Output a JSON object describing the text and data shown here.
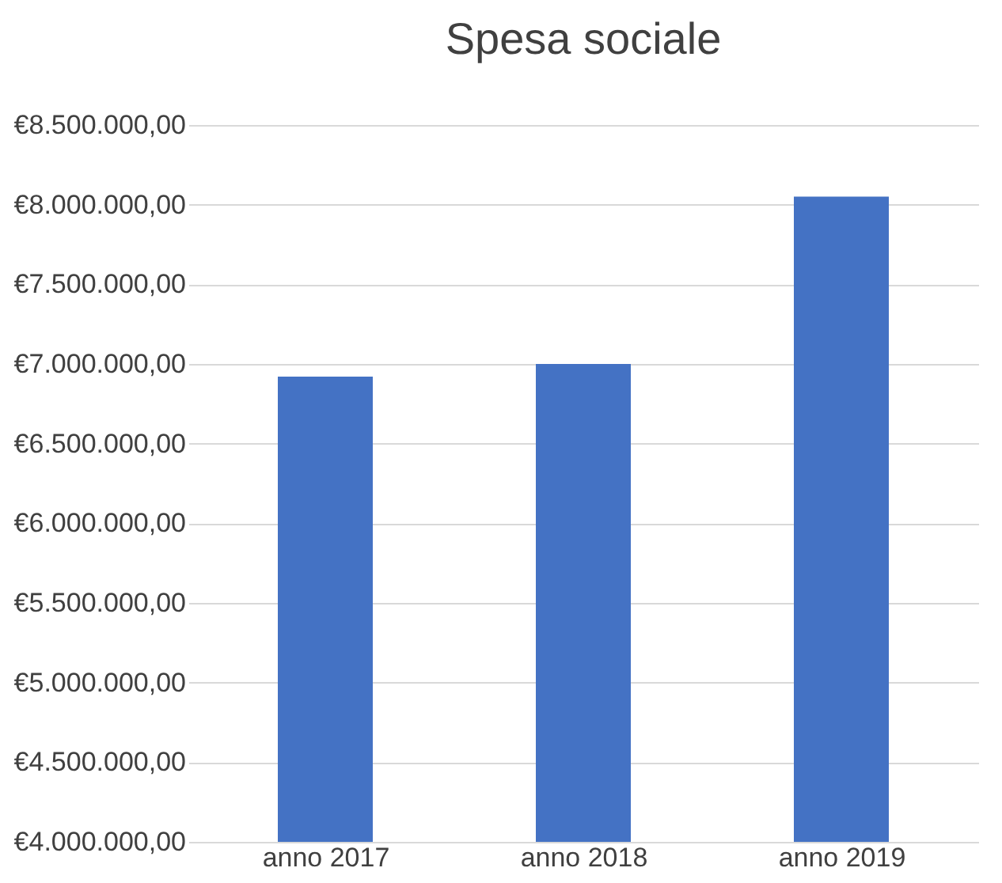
{
  "chart_data": {
    "type": "bar",
    "title": "Spesa sociale",
    "categories": [
      "anno 2017",
      "anno 2018",
      "anno 2019"
    ],
    "values": [
      6920000,
      7000000,
      8050000
    ],
    "color": "#4472c4",
    "ylim": [
      4000000,
      8500000
    ],
    "yticks": [
      {
        "value": 4000000,
        "label": "€4.000.000,00"
      },
      {
        "value": 4500000,
        "label": "€4.500.000,00"
      },
      {
        "value": 5000000,
        "label": "€5.000.000,00"
      },
      {
        "value": 5500000,
        "label": "€5.500.000,00"
      },
      {
        "value": 6000000,
        "label": "€6.000.000,00"
      },
      {
        "value": 6500000,
        "label": "€6.500.000,00"
      },
      {
        "value": 7000000,
        "label": "€7.000.000,00"
      },
      {
        "value": 7500000,
        "label": "€7.500.000,00"
      },
      {
        "value": 8000000,
        "label": "€8.000.000,00"
      },
      {
        "value": 8500000,
        "label": "€8.500.000,00"
      }
    ],
    "grid": "y"
  }
}
